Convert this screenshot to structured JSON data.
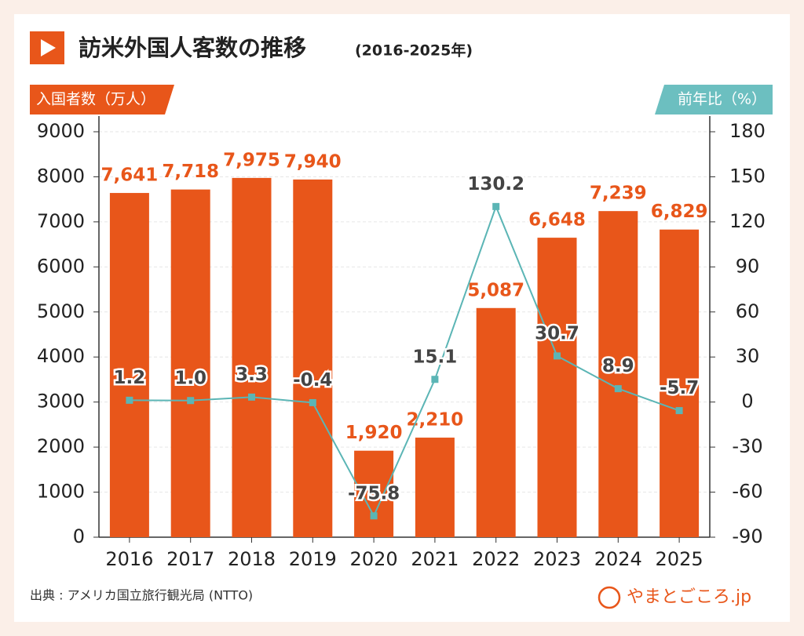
{
  "chart_data": {
    "type": "bar-line",
    "title": "訪米外国人客数の推移",
    "subtitle": "(2016-2025年)",
    "ylabel": "入国者数（万人）",
    "y2label": "前年比（%）",
    "source": "出典 : アメリカ国立旅行観光局 (NTTO)",
    "logo": "やまとごころ.jp",
    "categories": [
      "2016",
      "2017",
      "2018",
      "2019",
      "2020",
      "2021",
      "2022",
      "2023",
      "2024",
      "2025"
    ],
    "series": [
      {
        "type": "bar",
        "color": "#e8561a",
        "values": [
          7641,
          7718,
          7975,
          7940,
          1920,
          2210,
          5087,
          6648,
          7239,
          6829
        ],
        "value_labels": [
          "7,641",
          "7,718",
          "7,975",
          "7,940",
          "1,920",
          "2,210",
          "5,087",
          "6,648",
          "7,239",
          "6,829"
        ]
      },
      {
        "type": "line",
        "axis": "y2",
        "color": "#5bb5b5",
        "values": [
          1.2,
          1.0,
          3.3,
          -0.4,
          -75.8,
          15.1,
          130.2,
          30.7,
          8.9,
          -5.7
        ],
        "value_labels": [
          "1.2",
          "1.0",
          "3.3",
          "-0.4",
          "-75.8",
          "15.1",
          "130.2",
          "30.7",
          "8.9",
          "-5.7"
        ]
      }
    ],
    "ylim": [
      0,
      9000
    ],
    "yticks": [
      0,
      1000,
      2000,
      3000,
      4000,
      5000,
      6000,
      7000,
      8000,
      9000
    ],
    "y2lim": [
      -90,
      180
    ],
    "y2ticks": [
      -90,
      -60,
      -30,
      0,
      30,
      60,
      90,
      120,
      150,
      180
    ],
    "grid": true
  }
}
